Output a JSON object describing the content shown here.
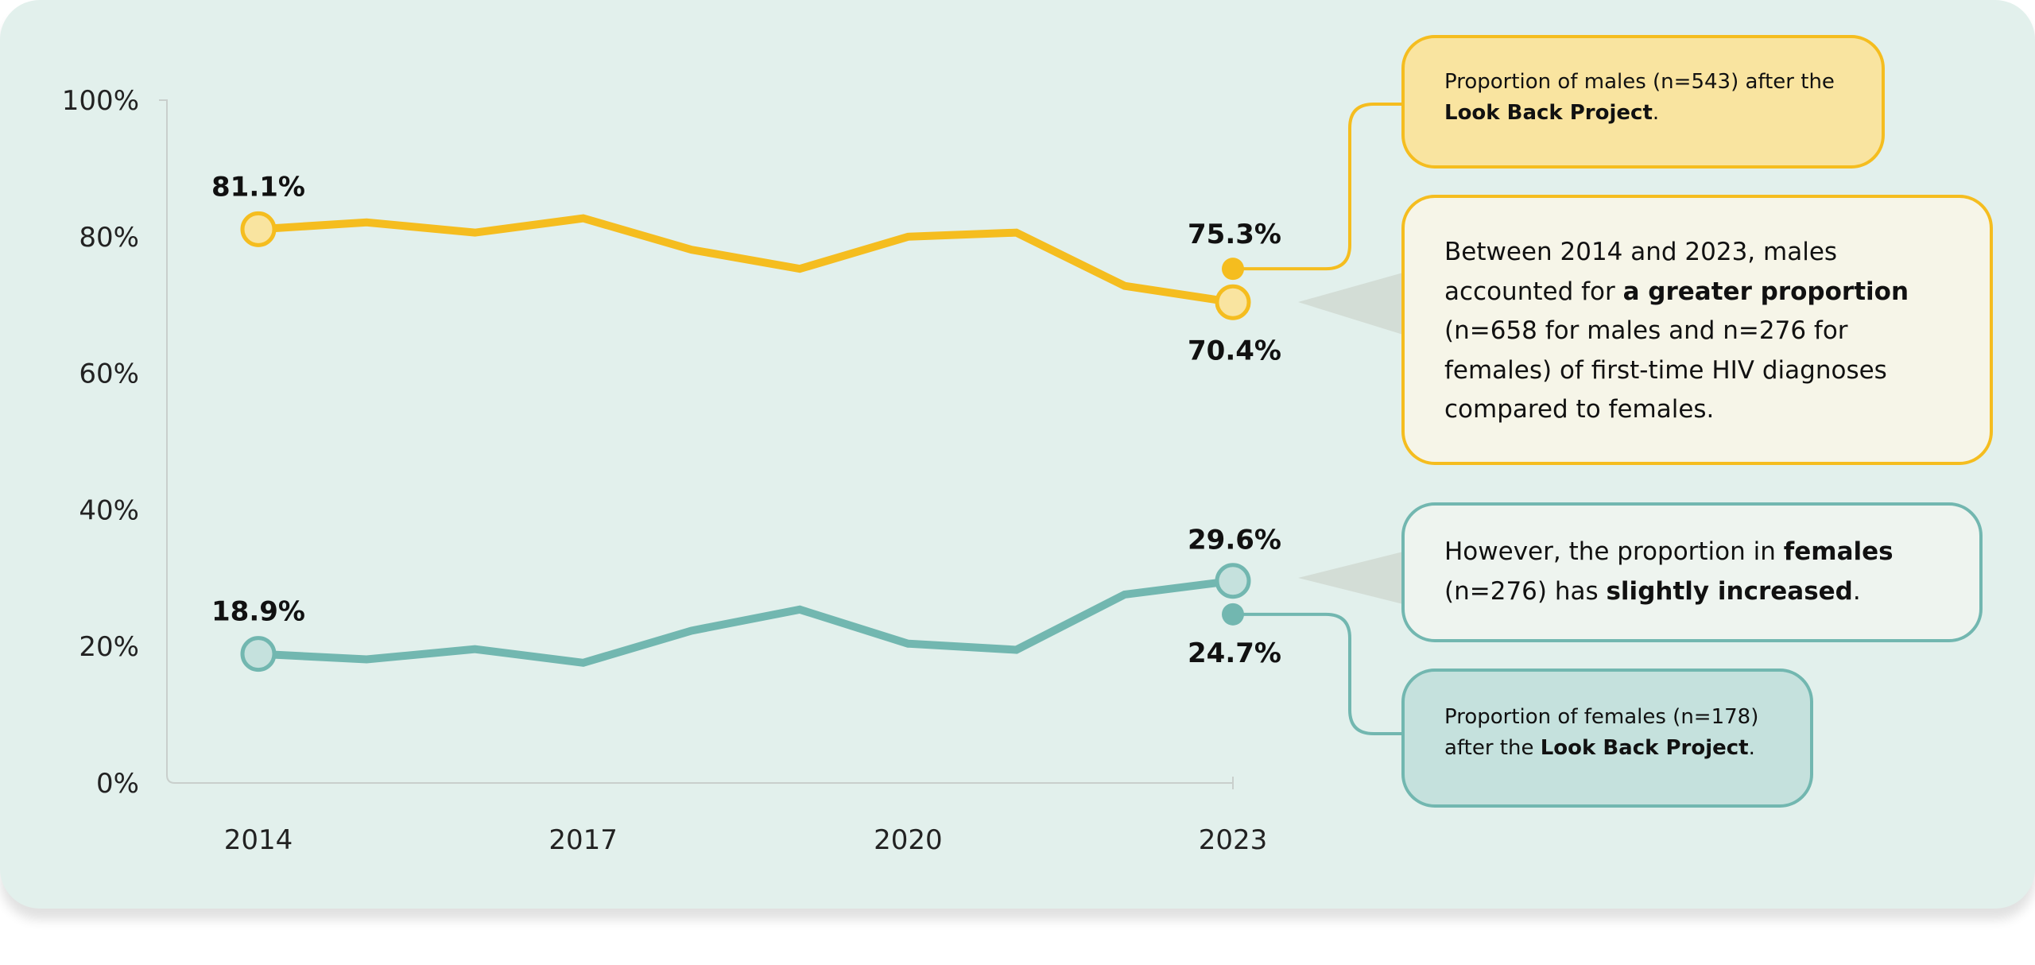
{
  "chart_data": {
    "type": "line",
    "x": [
      2014,
      2015,
      2016,
      2017,
      2018,
      2019,
      2020,
      2021,
      2022,
      2023
    ],
    "x_ticks": [
      "2014",
      "2017",
      "2020",
      "2023"
    ],
    "y_ticks": [
      "0%",
      "20%",
      "40%",
      "60%",
      "80%",
      "100%"
    ],
    "ylim": [
      0,
      100
    ],
    "grid": false,
    "series": [
      {
        "key": "males",
        "color": "#f5bd1f",
        "fill": "#f9e4a0",
        "values": [
          81.1,
          82.1,
          80.6,
          82.7,
          78.1,
          75.3,
          80.0,
          80.6,
          72.8,
          70.4
        ],
        "start_label": "81.1%",
        "end_label": "70.4%"
      },
      {
        "key": "females",
        "color": "#72b7b0",
        "fill": "#c5e1dd",
        "values": [
          18.9,
          18.1,
          19.6,
          17.6,
          22.3,
          25.4,
          20.4,
          19.5,
          27.6,
          29.6
        ],
        "start_label": "18.9%",
        "end_label": "29.6%"
      }
    ],
    "annotations": [
      {
        "series": "males",
        "x": 2023,
        "y": 75.3,
        "label": "75.3%"
      },
      {
        "series": "females",
        "x": 2023,
        "y": 24.7,
        "label": "24.7%"
      }
    ]
  },
  "callouts": {
    "males_after": {
      "pre": "Proportion of males (n=543) after the ",
      "bold": "Look Back Project",
      "post": "."
    },
    "males_summary": {
      "pre": "Between 2014 and 2023, males accounted for ",
      "bold": "a greater proportion",
      "post": " (n=658 for males and n=276 for females) of first-time HIV diagnoses compared to females."
    },
    "females_summary": {
      "pre": "However, the proportion in ",
      "bold1": "females",
      "mid": " (n=276) has ",
      "bold2": "slightly increased",
      "post": "."
    },
    "females_after": {
      "pre": "Proportion of females (n=178) after the ",
      "bold": "Look Back Project",
      "post": "."
    }
  }
}
